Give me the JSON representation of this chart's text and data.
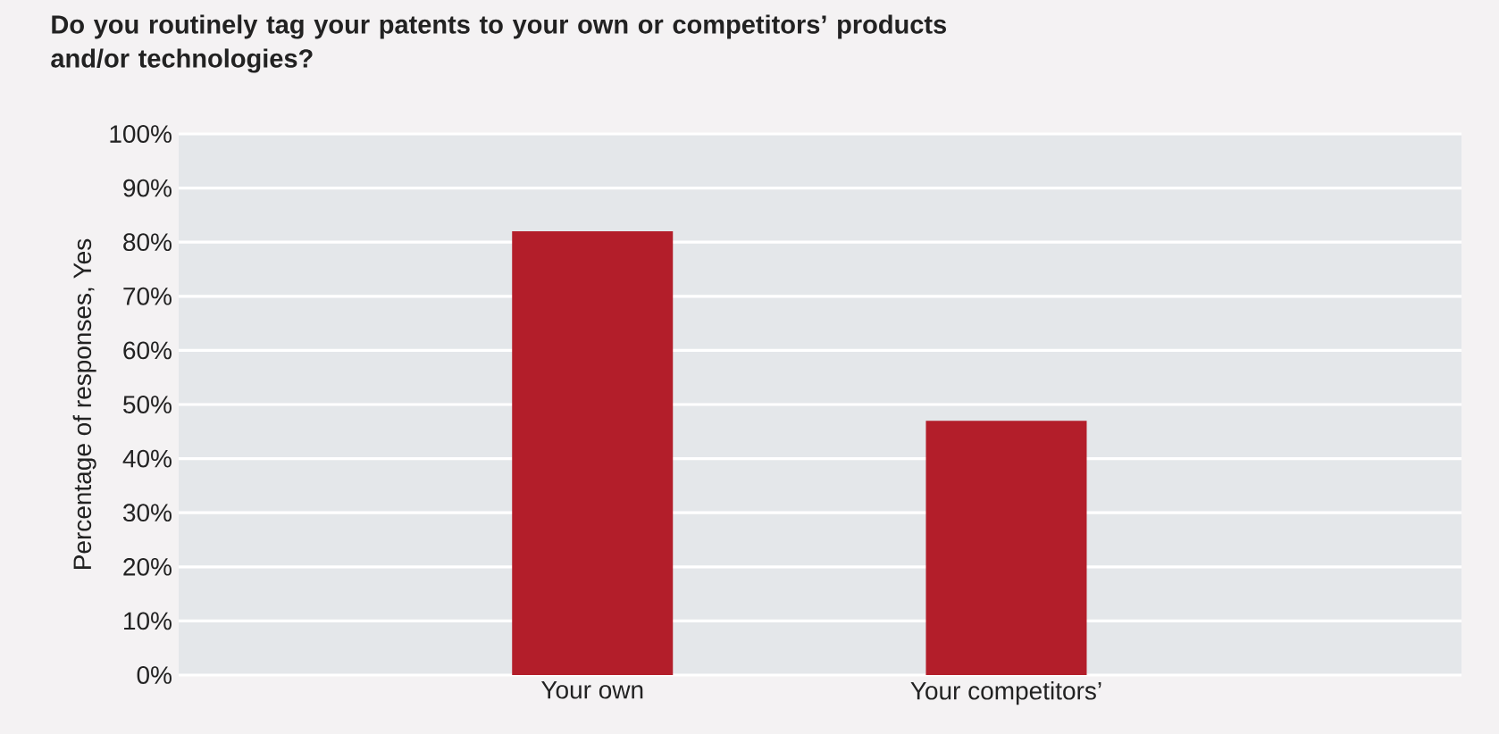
{
  "chart_data": {
    "type": "bar",
    "title": "Do you routinely tag your patents to your own or competitors’ products and/or technologies?",
    "ylabel": "Percentage of responses, Yes",
    "categories": [
      "Your own",
      "Your competitors’"
    ],
    "values": [
      82,
      47
    ],
    "color": "#b31e2a",
    "ylim": [
      0,
      100
    ],
    "yticks": [
      {
        "value": 0,
        "label": "0%"
      },
      {
        "value": 10,
        "label": "10%"
      },
      {
        "value": 20,
        "label": "20%"
      },
      {
        "value": 30,
        "label": "30%"
      },
      {
        "value": 40,
        "label": "40%"
      },
      {
        "value": 50,
        "label": "50%"
      },
      {
        "value": 60,
        "label": "60%"
      },
      {
        "value": 70,
        "label": "70%"
      },
      {
        "value": 80,
        "label": "80%"
      },
      {
        "value": 90,
        "label": "90%"
      },
      {
        "value": 100,
        "label": "100%"
      }
    ],
    "grid": "y"
  }
}
